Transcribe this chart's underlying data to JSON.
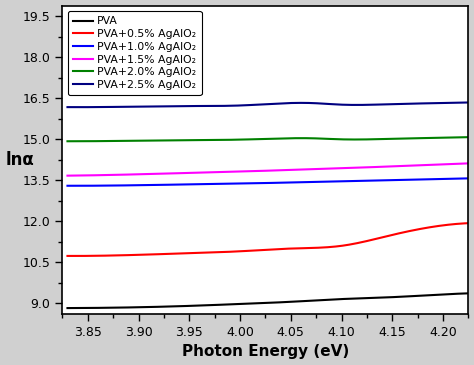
{
  "x_start": 3.83,
  "x_end": 4.225,
  "xlim": [
    3.825,
    4.225
  ],
  "ylim": [
    8.6,
    19.9
  ],
  "xlabel": "Photon Energy (eV)",
  "ylabel": "lnα",
  "xticks": [
    3.85,
    3.9,
    3.95,
    4.0,
    4.05,
    4.1,
    4.15,
    4.2
  ],
  "yticks": [
    9.0,
    10.5,
    12.0,
    13.5,
    15.0,
    16.5,
    18.0,
    19.5
  ],
  "background_color": "#ffffff",
  "plot_bg": "#f0f0f0",
  "series": [
    {
      "label": "PVA",
      "color": "#000000",
      "linewidth": 1.5,
      "points_x": [
        3.83,
        3.9,
        3.95,
        4.0,
        4.05,
        4.1,
        4.15,
        4.2,
        4.225
      ],
      "points_y": [
        8.82,
        8.85,
        8.9,
        8.97,
        9.05,
        9.15,
        9.22,
        9.32,
        9.36
      ]
    },
    {
      "label": "PVA+0.5% AgAlO₂",
      "color": "#ff0000",
      "linewidth": 1.5,
      "points_x": [
        3.83,
        3.9,
        3.95,
        4.0,
        4.05,
        4.1,
        4.15,
        4.2,
        4.225
      ],
      "points_y": [
        10.73,
        10.77,
        10.83,
        10.9,
        11.0,
        11.1,
        11.5,
        11.85,
        11.93
      ]
    },
    {
      "label": "PVA+1.0% AgAlO₂",
      "color": "#0000ff",
      "linewidth": 1.5,
      "points_x": [
        3.83,
        3.9,
        3.95,
        4.0,
        4.05,
        4.1,
        4.15,
        4.2,
        4.225
      ],
      "points_y": [
        13.3,
        13.32,
        13.35,
        13.38,
        13.42,
        13.46,
        13.5,
        13.55,
        13.57
      ]
    },
    {
      "label": "PVA+1.5% AgAlO₂",
      "color": "#ff00ff",
      "linewidth": 1.5,
      "points_x": [
        3.83,
        3.9,
        3.95,
        4.0,
        4.05,
        4.1,
        4.15,
        4.2,
        4.225
      ],
      "points_y": [
        13.67,
        13.72,
        13.77,
        13.82,
        13.88,
        13.94,
        14.01,
        14.08,
        14.12
      ]
    },
    {
      "label": "PVA+2.0% AgAlO₂",
      "color": "#008000",
      "linewidth": 1.5,
      "points_x": [
        3.83,
        3.9,
        3.95,
        4.0,
        4.05,
        4.07,
        4.1,
        4.15,
        4.2,
        4.225
      ],
      "points_y": [
        14.93,
        14.95,
        14.97,
        14.99,
        15.04,
        15.04,
        15.0,
        15.02,
        15.06,
        15.08
      ]
    },
    {
      "label": "PVA+2.5% AgAlO₂",
      "color": "#000080",
      "linewidth": 1.5,
      "points_x": [
        3.83,
        3.9,
        3.95,
        4.0,
        4.05,
        4.07,
        4.1,
        4.15,
        4.2,
        4.225
      ],
      "points_y": [
        16.18,
        16.2,
        16.22,
        16.24,
        16.33,
        16.33,
        16.27,
        16.29,
        16.33,
        16.35
      ]
    }
  ]
}
